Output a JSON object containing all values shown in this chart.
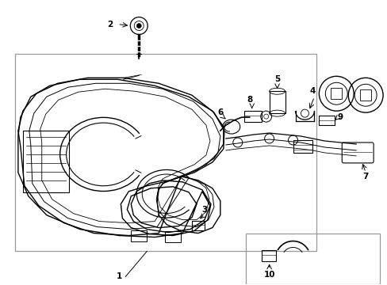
{
  "bg_color": "#ffffff",
  "line_color": "#000000",
  "gray_color": "#999999",
  "fig_width": 4.89,
  "fig_height": 3.6,
  "dpi": 100
}
